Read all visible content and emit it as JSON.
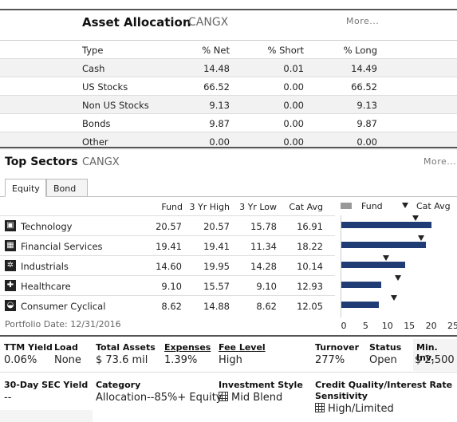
{
  "asset_allocation": {
    "title": "Asset Allocation",
    "ticker": "CANGX",
    "more": "More...",
    "headers": {
      "type": "Type",
      "net": "% Net",
      "short": "% Short",
      "long": "% Long"
    },
    "rows": [
      {
        "type": "Cash",
        "net": "14.48",
        "short": "0.01",
        "long": "14.49"
      },
      {
        "type": "US Stocks",
        "net": "66.52",
        "short": "0.00",
        "long": "66.52"
      },
      {
        "type": "Non US Stocks",
        "net": "9.13",
        "short": "0.00",
        "long": "9.13"
      },
      {
        "type": "Bonds",
        "net": "9.87",
        "short": "0.00",
        "long": "9.87"
      },
      {
        "type": "Other",
        "net": "0.00",
        "short": "0.00",
        "long": "0.00"
      }
    ]
  },
  "top_sectors": {
    "title": "Top Sectors",
    "ticker": "CANGX",
    "more": "More...",
    "tabs": [
      "Equity",
      "Bond"
    ],
    "headers": {
      "fund": "Fund",
      "high": "3 Yr High",
      "low": "3 Yr Low",
      "cat": "Cat Avg"
    },
    "legend": {
      "fund": "Fund",
      "cat": "Cat Avg"
    },
    "rows": [
      {
        "icon": "technology-icon",
        "name": "Technology",
        "fund": "20.57",
        "high": "20.57",
        "low": "15.78",
        "cat": "16.91"
      },
      {
        "icon": "financial-services-icon",
        "name": "Financial Services",
        "fund": "19.41",
        "high": "19.41",
        "low": "11.34",
        "cat": "18.22"
      },
      {
        "icon": "industrials-icon",
        "name": "Industrials",
        "fund": "14.60",
        "high": "19.95",
        "low": "14.28",
        "cat": "10.14"
      },
      {
        "icon": "healthcare-icon",
        "name": "Healthcare",
        "fund": "9.10",
        "high": "15.57",
        "low": "9.10",
        "cat": "12.93"
      },
      {
        "icon": "consumer-cyclical-icon",
        "name": "Consumer Cyclical",
        "fund": "8.62",
        "high": "14.88",
        "low": "8.62",
        "cat": "12.05"
      }
    ],
    "portfolio_date": "Portfolio Date: 12/31/2016",
    "colors": {
      "fund_bar": "#1f3d74",
      "legend_fund": "#999999",
      "cat_marker": "#222222"
    }
  },
  "chart_data": {
    "type": "bar",
    "categories": [
      "Technology",
      "Financial Services",
      "Industrials",
      "Healthcare",
      "Consumer Cyclical"
    ],
    "series": [
      {
        "name": "Fund",
        "values": [
          20.57,
          19.41,
          14.6,
          9.1,
          8.62
        ]
      },
      {
        "name": "Cat Avg",
        "values": [
          16.91,
          18.22,
          10.14,
          12.93,
          12.05
        ]
      }
    ],
    "xlim": [
      0,
      25
    ],
    "xticks": [
      "0",
      "5",
      "10",
      "15",
      "20",
      "25"
    ],
    "orientation": "horizontal"
  },
  "stats": {
    "ttm_yield_label": "TTM Yield",
    "ttm_yield": "0.06%",
    "load_label": "Load",
    "load": "None",
    "total_assets_label": "Total Assets",
    "total_assets": "$ 73.6 mil",
    "expenses_label": "Expenses",
    "expenses": "1.39%",
    "fee_level_label": "Fee Level",
    "fee_level": "High",
    "turnover_label": "Turnover",
    "turnover": "277%",
    "status_label": "Status",
    "status": "Open",
    "min_inv_label": "Min. Inv.",
    "min_inv": "$ 2,500",
    "sec_yield_label": "30-Day SEC Yield",
    "sec_yield": "--",
    "category_label": "Category",
    "category": "Allocation--85%+ Equity",
    "style_label": "Investment Style",
    "style": "Mid Blend",
    "credit_label_1": "Credit Quality/Interest Rate",
    "credit_label_2": "Sensitivity",
    "credit": "High/Limited"
  }
}
